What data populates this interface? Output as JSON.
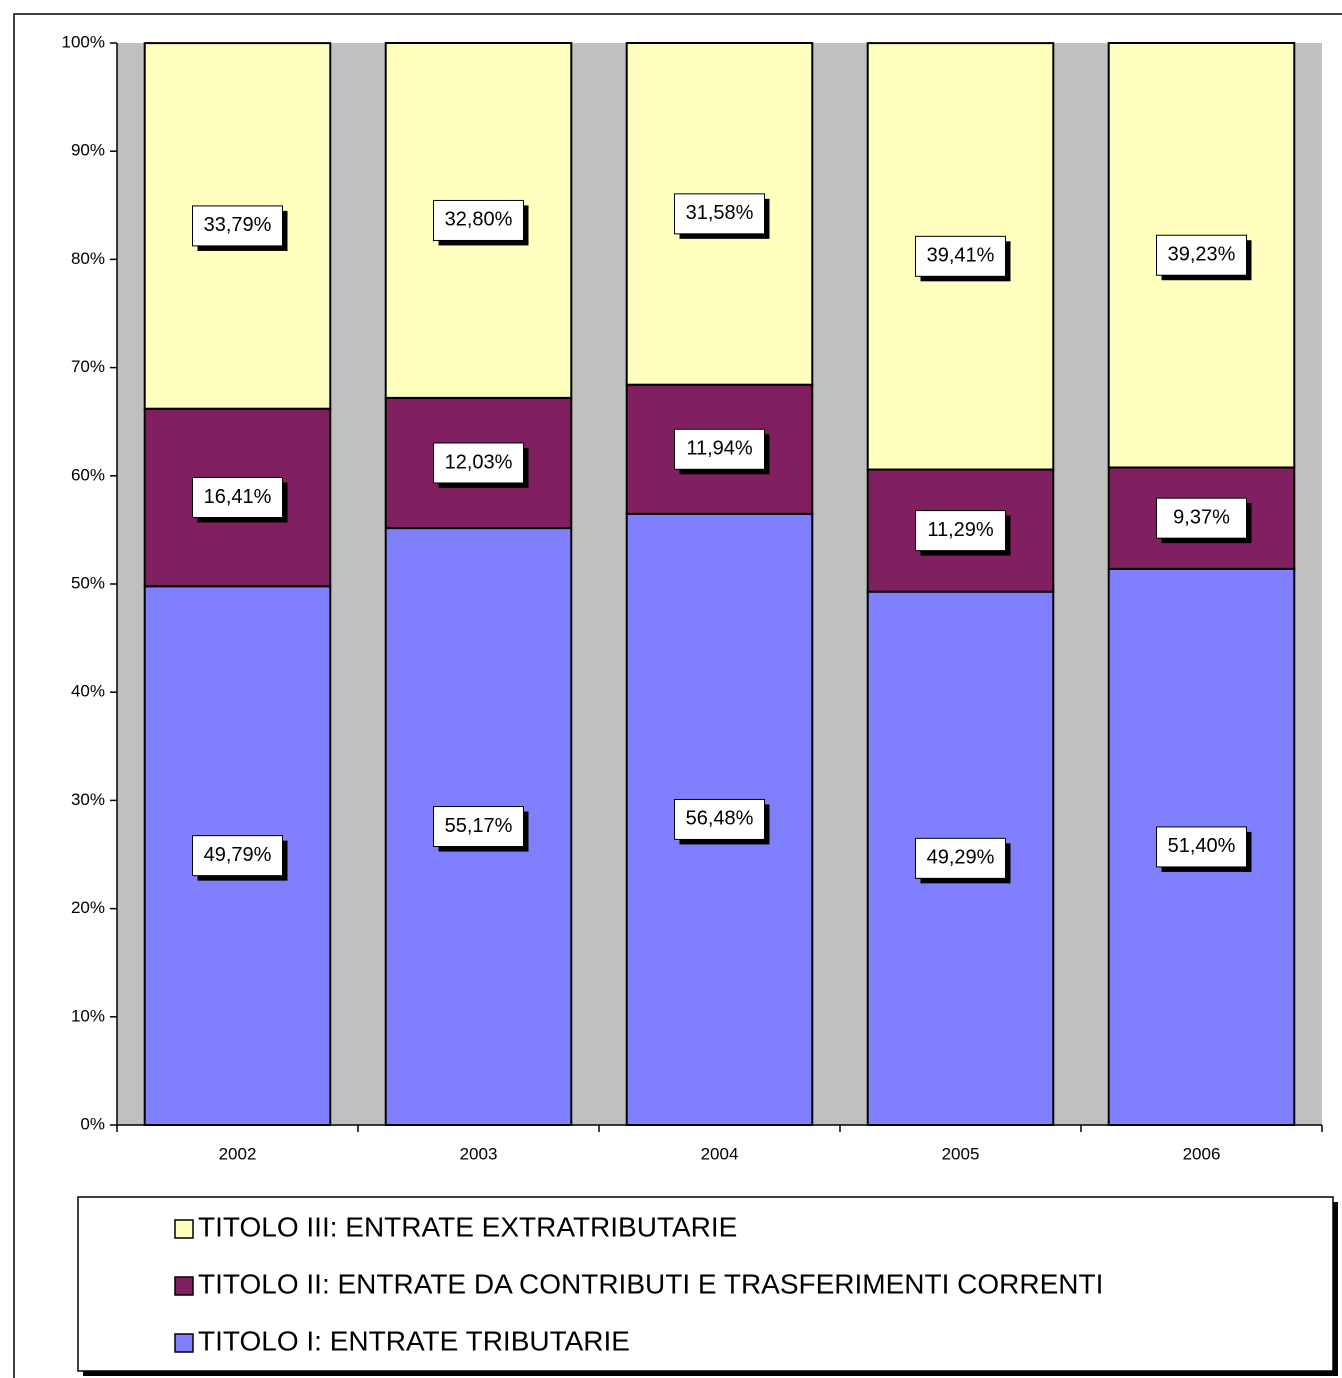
{
  "chart_data": {
    "type": "stacked_bar",
    "categories": [
      "2002",
      "2003",
      "2004",
      "2005",
      "2006"
    ],
    "series": [
      {
        "name": "TITOLO I: ENTRATE TRIBUTARIE",
        "color": "#8080ff",
        "values": [
          49.79,
          55.17,
          56.48,
          49.29,
          51.4
        ],
        "value_labels": [
          "49,79%",
          "55,17%",
          "56,48%",
          "49,29%",
          "51,40%"
        ]
      },
      {
        "name": "TITOLO II: ENTRATE DA CONTRIBUTI E TRASFERIMENTI CORRENTI",
        "color": "#802060",
        "values": [
          16.41,
          12.03,
          11.94,
          11.29,
          9.37
        ],
        "value_labels": [
          "16,41%",
          "12,03%",
          "11,94%",
          "11,29%",
          "9,37%"
        ]
      },
      {
        "name": "TITOLO III: ENTRATE EXTRATRIBUTARIE",
        "color": "#ffffc0",
        "values": [
          33.79,
          32.8,
          31.58,
          39.41,
          39.23
        ],
        "value_labels": [
          "33,79%",
          "32,80%",
          "31,58%",
          "39,41%",
          "39,23%"
        ]
      }
    ],
    "ylim": [
      0,
      100
    ],
    "yticks": [
      {
        "value": 0,
        "label": "0%"
      },
      {
        "value": 10,
        "label": "10%"
      },
      {
        "value": 20,
        "label": "20%"
      },
      {
        "value": 30,
        "label": "30%"
      },
      {
        "value": 40,
        "label": "40%"
      },
      {
        "value": 50,
        "label": "50%"
      },
      {
        "value": 60,
        "label": "60%"
      },
      {
        "value": 70,
        "label": "70%"
      },
      {
        "value": 80,
        "label": "80%"
      },
      {
        "value": 90,
        "label": "90%"
      },
      {
        "value": 100,
        "label": "100%"
      }
    ],
    "plot_background": "#c0c0c0",
    "legend": "bottom"
  }
}
